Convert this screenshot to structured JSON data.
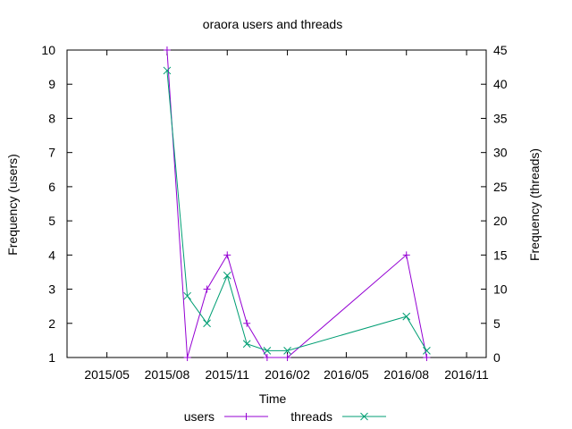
{
  "chart_data": {
    "type": "line",
    "title": "oraora users and threads",
    "xlabel": "Time",
    "ylabel_left": "Frequency (users)",
    "ylabel_right": "Frequency (threads)",
    "x_ticks": [
      "2015/05",
      "2015/08",
      "2015/11",
      "2016/02",
      "2016/05",
      "2016/08",
      "2016/11"
    ],
    "x_tick_dates": [
      "2015-05-01",
      "2015-08-01",
      "2015-11-01",
      "2016-02-01",
      "2016-05-01",
      "2016-08-01",
      "2016-11-01"
    ],
    "xlim": [
      "2015-03-01",
      "2016-12-01"
    ],
    "ylim_left": [
      1,
      10
    ],
    "yticks_left": [
      1,
      2,
      3,
      4,
      5,
      6,
      7,
      8,
      9,
      10
    ],
    "ylim_right": [
      0,
      45
    ],
    "yticks_right": [
      0,
      5,
      10,
      15,
      20,
      25,
      30,
      35,
      40,
      45
    ],
    "grid": false,
    "legend_position": "bottom",
    "series": [
      {
        "name": "users",
        "axis": "left",
        "color": "#9400d3",
        "marker": "plus",
        "points": [
          {
            "x": "2015-08-01",
            "y": 10
          },
          {
            "x": "2015-09-01",
            "y": 1
          },
          {
            "x": "2015-10-01",
            "y": 3
          },
          {
            "x": "2015-11-01",
            "y": 4
          },
          {
            "x": "2015-12-01",
            "y": 2
          },
          {
            "x": "2016-01-01",
            "y": 1
          },
          {
            "x": "2016-02-01",
            "y": 1
          },
          {
            "x": "2016-08-01",
            "y": 4
          },
          {
            "x": "2016-09-01",
            "y": 1
          }
        ]
      },
      {
        "name": "threads",
        "axis": "right",
        "color": "#009e73",
        "marker": "cross",
        "points": [
          {
            "x": "2015-08-01",
            "y": 42
          },
          {
            "x": "2015-09-01",
            "y": 9
          },
          {
            "x": "2015-10-01",
            "y": 5
          },
          {
            "x": "2015-11-01",
            "y": 12
          },
          {
            "x": "2015-12-01",
            "y": 2
          },
          {
            "x": "2016-01-01",
            "y": 1
          },
          {
            "x": "2016-02-01",
            "y": 1
          },
          {
            "x": "2016-08-01",
            "y": 6
          },
          {
            "x": "2016-09-01",
            "y": 1
          }
        ]
      }
    ]
  }
}
